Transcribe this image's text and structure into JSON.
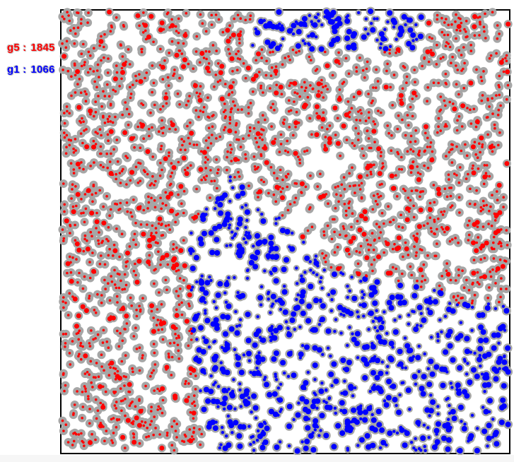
{
  "simulation": {
    "groups": [
      {
        "id": "g5",
        "label": "g5 :",
        "count": "1845",
        "color": "#ff0000"
      },
      {
        "id": "g1",
        "label": "g1 :",
        "count": "1066",
        "color": "#0000ff"
      }
    ],
    "particle_halo_color": "#a6a6a6",
    "frame_color": "#000000",
    "background": "#ffffff"
  }
}
